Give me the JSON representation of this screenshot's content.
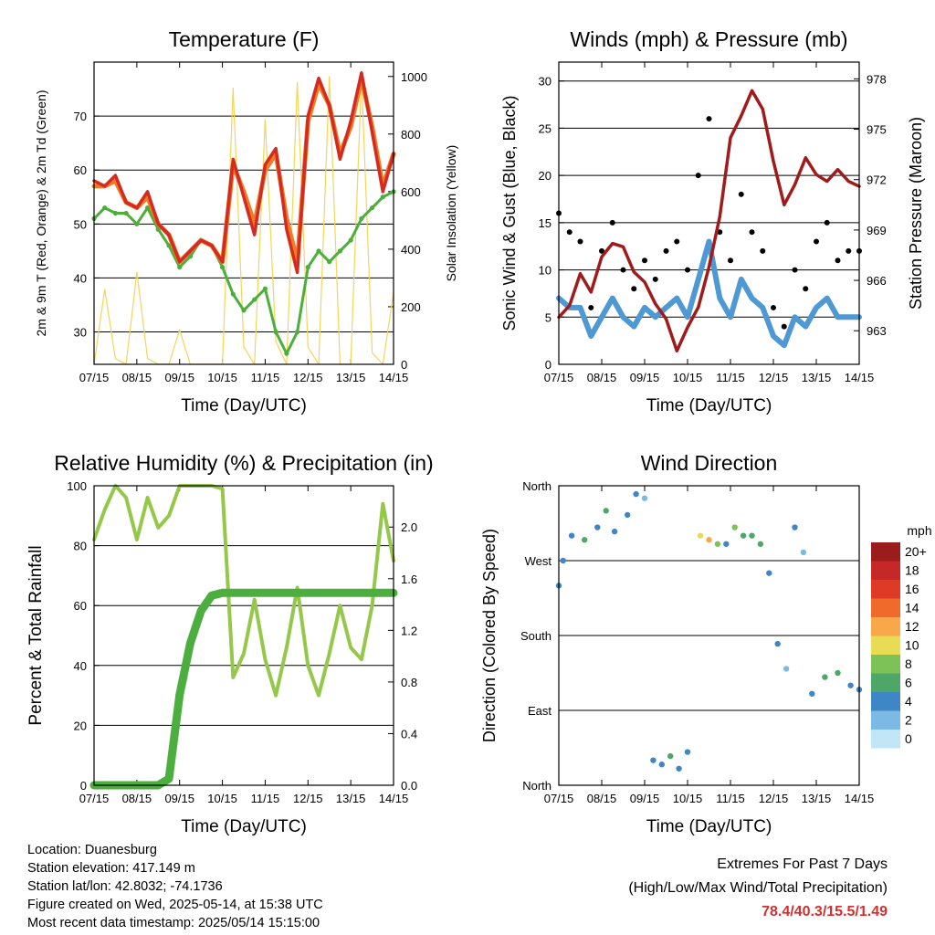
{
  "colors": {
    "temp_2m": "#d42a22",
    "temp_9m": "#f07c21",
    "dewpoint": "#4caf3a",
    "solar": "#f5d45a",
    "gust": "#000000",
    "wind": "#4e98d4",
    "pressure": "#a01b1b",
    "rh": "#95c84a",
    "precip": "#4cae3f"
  },
  "info": {
    "location": "Location: Duanesburg",
    "elevation": "Station elevation: 417.149 m",
    "latlon": "Station lat/lon: 42.8032; -74.1736",
    "created": "Figure created on Wed, 2025-05-14, at 15:38 UTC",
    "recent": "Most recent data timestamp: 2025/05/14 15:15:00"
  },
  "extremes": {
    "title": "Extremes For Past 7 Days",
    "subtitle": "(High/Low/Max Wind/Total Precipitation)",
    "values": "78.4/40.3/15.5/1.49"
  },
  "chart_data": [
    {
      "type": "line",
      "title": "Temperature (F)",
      "xlabel": "Time (Day/UTC)",
      "ylabel": "2m & 9m T (Red, Orange) & 2m Td (Green)",
      "ylabel_right": "Solar Insolation (Yellow)",
      "x_ticks": [
        "07/15",
        "08/15",
        "09/15",
        "10/15",
        "11/15",
        "12/15",
        "13/15",
        "14/15"
      ],
      "xlim": [
        0,
        7
      ],
      "ylim": [
        24,
        80
      ],
      "y_ticks": [
        30,
        40,
        50,
        60,
        70
      ],
      "ylim_right": [
        0,
        1050
      ],
      "y_ticks_right": [
        0,
        200,
        400,
        600,
        800,
        1000
      ],
      "grid": "horizontal",
      "x": [
        0,
        0.25,
        0.5,
        0.75,
        1.0,
        1.25,
        1.5,
        1.75,
        2.0,
        2.25,
        2.5,
        2.75,
        3.0,
        3.25,
        3.5,
        3.75,
        4.0,
        4.25,
        4.5,
        4.75,
        5.0,
        5.25,
        5.5,
        5.75,
        6.0,
        6.25,
        6.5,
        6.75,
        7.0
      ],
      "series": [
        {
          "name": "2m T",
          "values": [
            58,
            57,
            59,
            54,
            53,
            56,
            50,
            48,
            43,
            45,
            47,
            46,
            43,
            62,
            55,
            48,
            61,
            64,
            49,
            41,
            70,
            77,
            72,
            62,
            69,
            78,
            67,
            56,
            63
          ]
        },
        {
          "name": "9m T",
          "values": [
            57,
            57,
            58,
            54,
            53,
            55,
            50,
            48,
            43,
            45,
            47,
            46,
            43,
            61,
            56,
            50,
            60,
            63,
            51,
            43,
            69,
            76,
            72,
            63,
            68,
            77,
            68,
            57,
            63
          ]
        },
        {
          "name": "2m Td",
          "values": [
            51,
            53,
            52,
            52,
            50,
            53,
            49,
            46,
            42,
            44,
            47,
            46,
            42,
            37,
            34,
            36,
            38,
            30,
            26,
            30,
            42,
            45,
            43,
            45,
            47,
            51,
            53,
            55,
            56
          ]
        },
        {
          "name": "Solar",
          "values": [
            0,
            260,
            20,
            0,
            320,
            20,
            0,
            0,
            120,
            0,
            0,
            0,
            0,
            960,
            60,
            0,
            850,
            80,
            0,
            980,
            60,
            0,
            1000,
            0,
            0,
            1000,
            40,
            0,
            250
          ]
        }
      ]
    },
    {
      "type": "scatter",
      "title": "Winds (mph) & Pressure (mb)",
      "xlabel": "Time (Day/UTC)",
      "ylabel": "Sonic Wind & Gust (Blue, Black)",
      "ylabel_right": "Station Pressure (Maroon)",
      "x_ticks": [
        "07/15",
        "08/15",
        "09/15",
        "10/15",
        "11/15",
        "12/15",
        "13/15",
        "14/15"
      ],
      "xlim": [
        0,
        7
      ],
      "ylim": [
        0,
        32
      ],
      "y_ticks": [
        0,
        5,
        10,
        15,
        20,
        25,
        30
      ],
      "ylim_right": [
        961,
        979
      ],
      "y_ticks_right": [
        963,
        966,
        969,
        972,
        975,
        978
      ],
      "grid": "horizontal",
      "x": [
        0,
        0.25,
        0.5,
        0.75,
        1.0,
        1.25,
        1.5,
        1.75,
        2.0,
        2.25,
        2.5,
        2.75,
        3.0,
        3.25,
        3.5,
        3.75,
        4.0,
        4.25,
        4.5,
        4.75,
        5.0,
        5.25,
        5.5,
        5.75,
        6.0,
        6.25,
        6.5,
        6.75,
        7.0
      ],
      "series": [
        {
          "name": "Gust",
          "values": [
            16,
            14,
            13,
            6,
            12,
            15,
            10,
            8,
            11,
            9,
            12,
            13,
            10,
            20,
            26,
            14,
            11,
            18,
            14,
            12,
            6,
            4,
            10,
            8,
            13,
            15,
            11,
            12,
            12
          ]
        },
        {
          "name": "Wind",
          "values": [
            7,
            6,
            6,
            3,
            5,
            7,
            5,
            4,
            6,
            5,
            6,
            7,
            5,
            9,
            13,
            7,
            5,
            9,
            7,
            6,
            3,
            2,
            5,
            4,
            6,
            7,
            5,
            5,
            5
          ]
        },
        {
          "name": "Pressure",
          "values": [
            963.8,
            964.5,
            966.4,
            965.3,
            967.4,
            968.2,
            968.0,
            966.5,
            965.9,
            964.6,
            963.7,
            961.8,
            963.2,
            964.4,
            966.8,
            969.8,
            974.5,
            975.8,
            977.3,
            976.2,
            973.1,
            970.5,
            971.7,
            973.3,
            972.3,
            971.9,
            972.6,
            971.9,
            971.6
          ]
        }
      ]
    },
    {
      "type": "line",
      "title": "Relative Humidity (%) & Precipitation (in)",
      "xlabel": "Time (Day/UTC)",
      "ylabel": "Percent & Total Rainfall",
      "x_ticks": [
        "07/15",
        "08/15",
        "09/15",
        "10/15",
        "11/15",
        "12/15",
        "13/15",
        "14/15"
      ],
      "xlim": [
        0,
        7
      ],
      "ylim": [
        0,
        100
      ],
      "y_ticks": [
        0,
        20,
        40,
        60,
        80,
        100
      ],
      "ylim_right": [
        0,
        2.32
      ],
      "y_ticks_right": [
        "0.0",
        "0.4",
        "0.8",
        "1.2",
        "1.6",
        "2.0"
      ],
      "grid": "horizontal",
      "x": [
        0,
        0.25,
        0.5,
        0.75,
        1.0,
        1.25,
        1.5,
        1.75,
        2.0,
        2.25,
        2.5,
        2.75,
        3.0,
        3.25,
        3.5,
        3.75,
        4.0,
        4.25,
        4.5,
        4.75,
        5.0,
        5.25,
        5.5,
        5.75,
        6.0,
        6.25,
        6.5,
        6.75,
        7.0
      ],
      "series": [
        {
          "name": "RH",
          "values": [
            82,
            92,
            100,
            96,
            82,
            96,
            86,
            90,
            100,
            100,
            100,
            100,
            99,
            36,
            44,
            62,
            42,
            30,
            46,
            66,
            40,
            30,
            44,
            60,
            46,
            42,
            60,
            94,
            75
          ]
        },
        {
          "name": "Precip",
          "values": [
            0,
            0,
            0,
            0,
            0,
            0,
            0,
            0.05,
            0.7,
            1.1,
            1.35,
            1.47,
            1.49,
            1.49,
            1.49,
            1.49,
            1.49,
            1.49,
            1.49,
            1.49,
            1.49,
            1.49,
            1.49,
            1.49,
            1.49,
            1.49,
            1.49,
            1.49,
            1.49
          ]
        }
      ]
    },
    {
      "type": "scatter",
      "title": "Wind Direction",
      "xlabel": "Time (Day/UTC)",
      "ylabel": "Direction (Colored By Speed)",
      "x_ticks": [
        "07/15",
        "08/15",
        "09/15",
        "10/15",
        "11/15",
        "12/15",
        "13/15",
        "14/15"
      ],
      "xlim": [
        0,
        7
      ],
      "ylim": [
        0,
        360
      ],
      "y_ticks": [
        "North",
        "East",
        "South",
        "West",
        "North"
      ],
      "grid": "horizontal",
      "legend": {
        "title": "mph",
        "labels": [
          "20+",
          "18",
          "16",
          "14",
          "12",
          "10",
          "8",
          "6",
          "4",
          "2",
          "0"
        ],
        "colors": [
          "#9b1c1c",
          "#c62828",
          "#de3a26",
          "#f06a2c",
          "#f8a84a",
          "#e8dc55",
          "#7cc257",
          "#4da868",
          "#3f86c6",
          "#7cb9e4",
          "#c3e6f6"
        ]
      },
      "x": [
        0,
        0.1,
        0.3,
        0.6,
        0.9,
        1.1,
        1.3,
        1.6,
        1.8,
        2.0,
        2.2,
        2.4,
        2.6,
        2.8,
        3.0,
        3.3,
        3.5,
        3.7,
        3.9,
        4.1,
        4.3,
        4.5,
        4.7,
        4.9,
        5.1,
        5.3,
        5.5,
        5.7,
        5.9,
        6.2,
        6.5,
        6.8,
        7.0
      ],
      "series": [
        {
          "name": "direction",
          "values": [
            240,
            270,
            300,
            295,
            310,
            330,
            305,
            325,
            350,
            345,
            30,
            25,
            35,
            20,
            40,
            300,
            295,
            290,
            290,
            310,
            300,
            300,
            290,
            255,
            170,
            140,
            310,
            280,
            110,
            130,
            135,
            120,
            115
          ]
        },
        {
          "name": "speed",
          "values": [
            4,
            5,
            5,
            6,
            5,
            6,
            4,
            5,
            4,
            3,
            4,
            5,
            6,
            5,
            4,
            10,
            13,
            9,
            5,
            8,
            7,
            6,
            6,
            4,
            4,
            3,
            4,
            3,
            4,
            6,
            7,
            5,
            4
          ]
        }
      ]
    }
  ]
}
